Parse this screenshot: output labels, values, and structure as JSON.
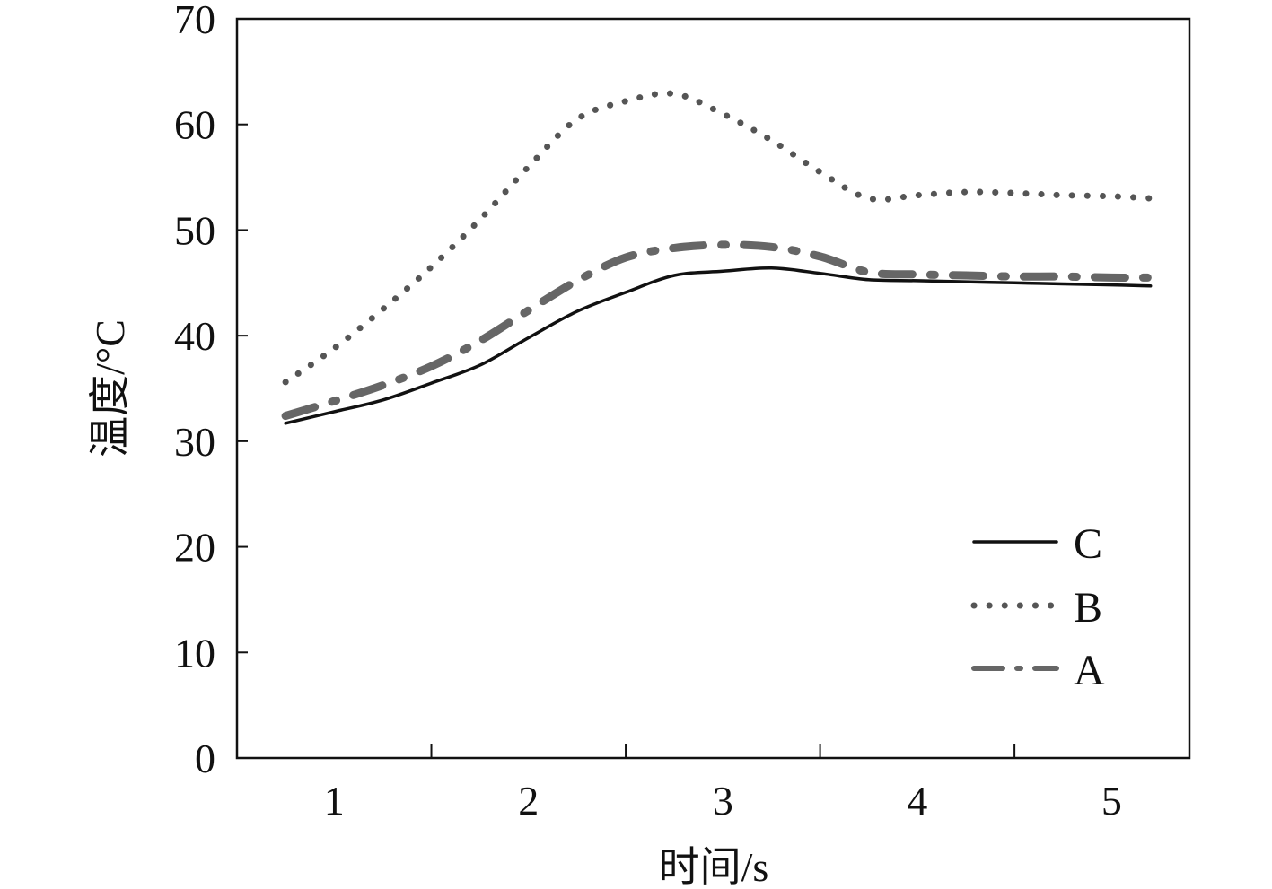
{
  "chart_data": {
    "type": "line",
    "title": "",
    "xlabel": "时间/s",
    "ylabel": "温度/°C",
    "xlim": [
      0.5,
      5.4
    ],
    "ylim": [
      0,
      70
    ],
    "yticks": [
      0,
      10,
      20,
      30,
      40,
      50,
      60,
      70
    ],
    "xticks": [
      1,
      2,
      3,
      4,
      5
    ],
    "ytick_labels": [
      "0",
      "10",
      "20",
      "30",
      "40",
      "50",
      "60",
      "70"
    ],
    "xtick_labels": [
      "1",
      "2",
      "3",
      "4",
      "5"
    ],
    "grid": false,
    "legend_position": "bottom-right",
    "series": [
      {
        "name": "C",
        "style": "solid",
        "color": "#111111",
        "x": [
          0.75,
          1.0,
          1.25,
          1.5,
          1.75,
          2.0,
          2.25,
          2.5,
          2.75,
          3.0,
          3.25,
          3.5,
          3.75,
          4.0,
          4.25,
          4.5,
          4.75,
          5.0,
          5.2
        ],
        "y": [
          31.7,
          32.8,
          33.9,
          35.5,
          37.2,
          39.8,
          42.3,
          44.1,
          45.7,
          46.1,
          46.4,
          45.9,
          45.3,
          45.2,
          45.1,
          45.0,
          44.9,
          44.8,
          44.7
        ]
      },
      {
        "name": "B",
        "style": "dotted",
        "color": "#555555",
        "x": [
          0.75,
          1.0,
          1.25,
          1.5,
          1.75,
          2.0,
          2.25,
          2.5,
          2.75,
          3.0,
          3.25,
          3.5,
          3.75,
          4.0,
          4.25,
          4.5,
          4.75,
          5.0,
          5.2
        ],
        "y": [
          35.6,
          38.8,
          42.5,
          46.5,
          51.0,
          56.0,
          60.5,
          62.2,
          62.9,
          61.0,
          58.5,
          55.5,
          53.0,
          53.3,
          53.6,
          53.5,
          53.3,
          53.2,
          53.0
        ]
      },
      {
        "name": "A",
        "style": "dash-dot",
        "color": "#666666",
        "x": [
          0.75,
          1.0,
          1.25,
          1.5,
          1.75,
          2.0,
          2.25,
          2.5,
          2.75,
          3.0,
          3.25,
          3.5,
          3.75,
          4.0,
          4.25,
          4.5,
          4.75,
          5.0,
          5.2
        ],
        "y": [
          32.4,
          33.8,
          35.3,
          37.1,
          39.5,
          42.4,
          45.2,
          47.4,
          48.3,
          48.6,
          48.4,
          47.5,
          46.0,
          45.8,
          45.7,
          45.6,
          45.6,
          45.5,
          45.5
        ]
      }
    ]
  }
}
